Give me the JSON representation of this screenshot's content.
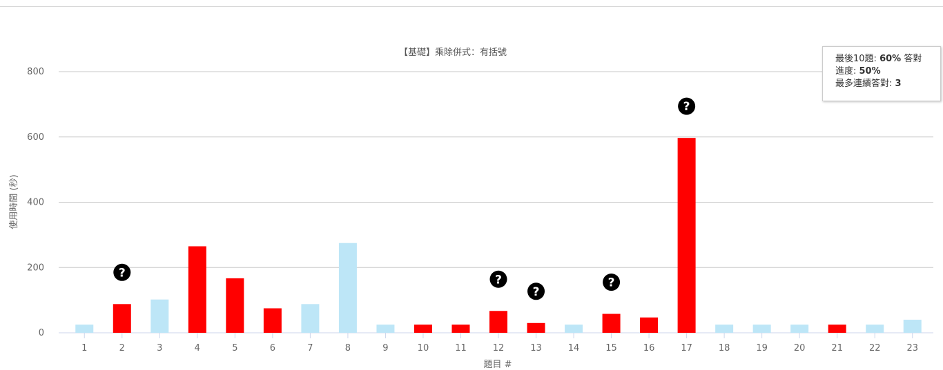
{
  "chart_data": {
    "type": "bar",
    "title": "【基礎】乘除併式：有括號",
    "xlabel": "題目 #",
    "ylabel": "使用時間 (秒)",
    "ylim": [
      0,
      800
    ],
    "yticks": [
      "0",
      "200",
      "400",
      "600",
      "800"
    ],
    "grid": true,
    "categories": [
      "1",
      "2",
      "3",
      "4",
      "5",
      "6",
      "7",
      "8",
      "9",
      "10",
      "11",
      "12",
      "13",
      "14",
      "15",
      "16",
      "17",
      "18",
      "19",
      "20",
      "21",
      "22",
      "23"
    ],
    "values": [
      25,
      88,
      102,
      265,
      167,
      75,
      88,
      275,
      25,
      25,
      25,
      67,
      30,
      25,
      58,
      47,
      597,
      25,
      25,
      25,
      25,
      25,
      40
    ],
    "correct": [
      true,
      false,
      true,
      false,
      false,
      false,
      true,
      true,
      true,
      false,
      false,
      false,
      false,
      true,
      false,
      false,
      false,
      true,
      true,
      true,
      false,
      true,
      true
    ],
    "hint_used": [
      false,
      true,
      false,
      false,
      false,
      false,
      false,
      false,
      false,
      false,
      false,
      true,
      true,
      false,
      true,
      false,
      true,
      false,
      false,
      false,
      false,
      false,
      false
    ],
    "colors": {
      "correct": "#bde6f7",
      "wrong": "#ff0000",
      "grid": "#c8c8c8",
      "axis_text": "#666666",
      "icon": "#000000"
    },
    "icon": "question-circle-icon",
    "icon_glyph": "?"
  },
  "tooltip": {
    "line1_label": "最後10題: ",
    "line1_value": "60%",
    "line1_suffix": " 答對",
    "line2_label": "進度: ",
    "line2_value": "50%",
    "line3_label": "最多連續答對: ",
    "line3_value": "3"
  }
}
